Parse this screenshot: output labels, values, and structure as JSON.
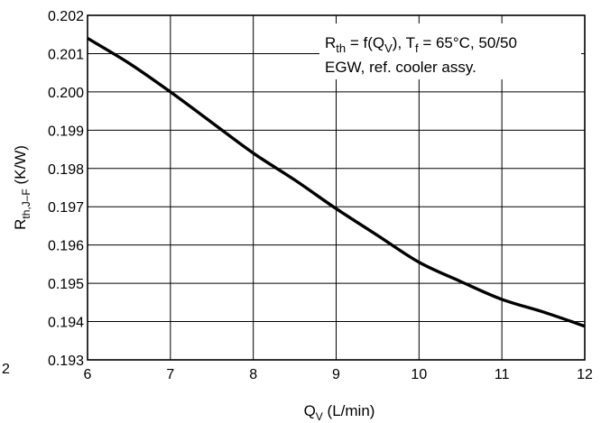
{
  "chart_data": {
    "type": "line",
    "xlabel": "Q",
    "xlabel_sub": "V",
    "xlabel_unit": " (L/min)",
    "ylabel": "R",
    "ylabel_sub": "th,J–F",
    "ylabel_unit": " (K/W)",
    "xlim": [
      6,
      12
    ],
    "ylim": [
      0.193,
      0.202
    ],
    "x_ticks": [
      "6",
      "7",
      "8",
      "9",
      "10",
      "11",
      "12"
    ],
    "y_ticks": [
      "0.193",
      "0.194",
      "0.195",
      "0.196",
      "0.197",
      "0.198",
      "0.199",
      "0.200",
      "0.201",
      "0.202"
    ],
    "stray_tick_label": "2",
    "grid": true,
    "annotation_lines": [
      [
        {
          "t": "R"
        },
        {
          "t": "th",
          "sub": true
        },
        {
          "t": " = f(Q"
        },
        {
          "t": "V",
          "sub": true
        },
        {
          "t": "), T"
        },
        {
          "t": "f",
          "sub": true
        },
        {
          "t": " = 65°C, 50/50"
        }
      ],
      [
        {
          "t": "EGW, ref. cooler assy."
        }
      ]
    ],
    "series": [
      {
        "line_color": "#000000",
        "x": [
          6.0,
          6.5,
          7.0,
          7.5,
          8.0,
          8.5,
          9.0,
          9.5,
          10.0,
          10.5,
          11.0,
          11.5,
          12.0
        ],
        "y": [
          0.2014,
          0.20075,
          0.2,
          0.1992,
          0.1984,
          0.1977,
          0.19695,
          0.19625,
          0.19555,
          0.19505,
          0.19458,
          0.19425,
          0.19388
        ]
      }
    ]
  }
}
